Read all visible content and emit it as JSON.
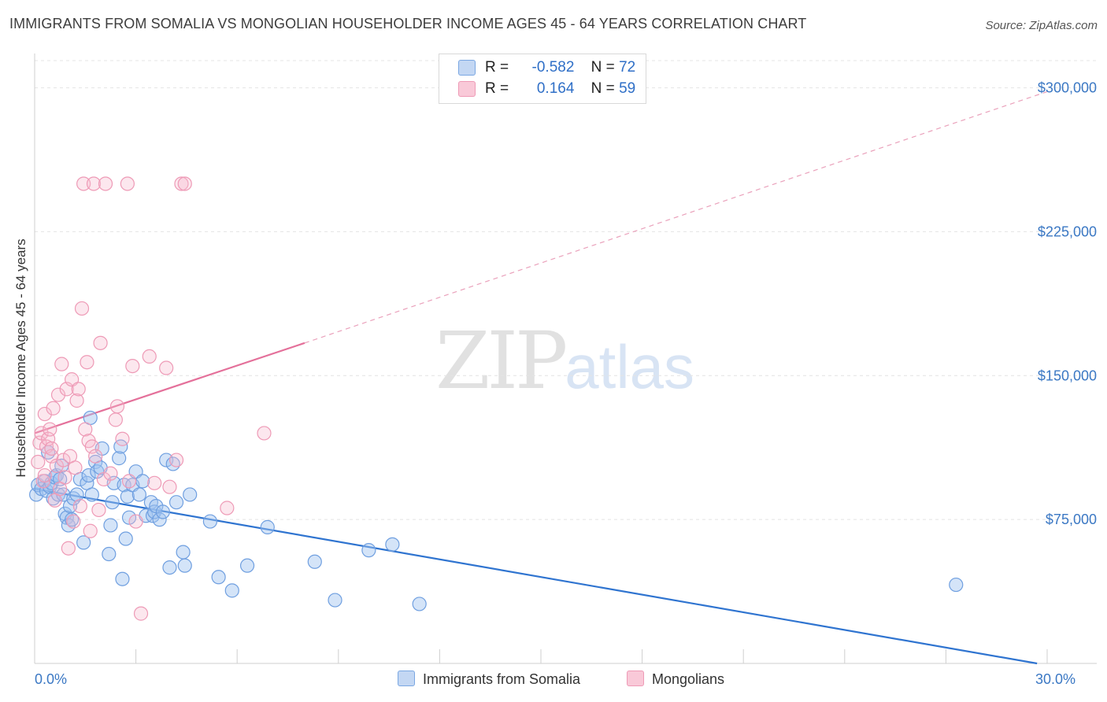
{
  "title": "IMMIGRANTS FROM SOMALIA VS MONGOLIAN HOUSEHOLDER INCOME AGES 45 - 64 YEARS CORRELATION CHART",
  "source": "Source: ZipAtlas.com",
  "watermark": {
    "zip": "ZIP",
    "atlas": "atlas"
  },
  "legend": {
    "rows": [
      {
        "r_label": "R =",
        "r_value": "-0.582",
        "n_label": "N =",
        "n_value": "72",
        "color": "#6f9fe0"
      },
      {
        "r_label": "R =",
        "r_value": "0.164",
        "n_label": "N =",
        "n_value": "59",
        "color": "#ee8fb0"
      }
    ]
  },
  "bottom_legend": [
    {
      "label": "Immigrants from Somalia",
      "color": "#6f9fe0"
    },
    {
      "label": "Mongolians",
      "color": "#ee8fb0"
    }
  ],
  "chart_data": {
    "type": "scatter",
    "title": "IMMIGRANTS FROM SOMALIA VS MONGOLIAN HOUSEHOLDER INCOME AGES 45 - 64 YEARS CORRELATION CHART",
    "xlabel": "",
    "ylabel": "Householder Income Ages 45 - 64 years",
    "xlim": [
      0,
      30
    ],
    "ylim": [
      0,
      315000
    ],
    "x_tick_labels": [
      {
        "value": 0,
        "label": "0.0%"
      },
      {
        "value": 30,
        "label": "30.0%"
      }
    ],
    "y_tick_labels": [
      {
        "value": 75000,
        "label": "$75,000"
      },
      {
        "value": 150000,
        "label": "$150,000"
      },
      {
        "value": 225000,
        "label": "$225,000"
      },
      {
        "value": 300000,
        "label": "$300,000"
      }
    ],
    "grid": true,
    "series": [
      {
        "name": "Immigrants from Somalia",
        "color": "#6f9fe0",
        "points": [
          [
            0.05,
            88000
          ],
          [
            0.1,
            93000
          ],
          [
            0.2,
            91000
          ],
          [
            0.3,
            95000
          ],
          [
            0.35,
            90000
          ],
          [
            0.4,
            110000
          ],
          [
            0.45,
            92000
          ],
          [
            0.5,
            94000
          ],
          [
            0.55,
            86000
          ],
          [
            0.6,
            97000
          ],
          [
            0.65,
            98000
          ],
          [
            0.7,
            88000
          ],
          [
            0.75,
            96000
          ],
          [
            0.8,
            103000
          ],
          [
            0.85,
            88000
          ],
          [
            0.9,
            78000
          ],
          [
            0.95,
            76000
          ],
          [
            1.0,
            72000
          ],
          [
            1.05,
            82000
          ],
          [
            1.1,
            75000
          ],
          [
            1.15,
            86000
          ],
          [
            1.25,
            88000
          ],
          [
            1.35,
            96000
          ],
          [
            1.45,
            63000
          ],
          [
            1.55,
            94000
          ],
          [
            1.6,
            98000
          ],
          [
            1.65,
            128000
          ],
          [
            1.7,
            88000
          ],
          [
            1.8,
            105000
          ],
          [
            1.85,
            100000
          ],
          [
            1.95,
            102000
          ],
          [
            2.0,
            112000
          ],
          [
            2.2,
            57000
          ],
          [
            2.25,
            72000
          ],
          [
            2.3,
            84000
          ],
          [
            2.35,
            94000
          ],
          [
            2.5,
            107000
          ],
          [
            2.55,
            113000
          ],
          [
            2.6,
            44000
          ],
          [
            2.65,
            93000
          ],
          [
            2.7,
            65000
          ],
          [
            2.75,
            87000
          ],
          [
            2.8,
            76000
          ],
          [
            2.9,
            93000
          ],
          [
            3.0,
            100000
          ],
          [
            3.1,
            88000
          ],
          [
            3.2,
            95000
          ],
          [
            3.3,
            77000
          ],
          [
            3.45,
            84000
          ],
          [
            3.5,
            77000
          ],
          [
            3.55,
            79000
          ],
          [
            3.6,
            82000
          ],
          [
            3.7,
            75000
          ],
          [
            3.8,
            79000
          ],
          [
            3.9,
            106000
          ],
          [
            4.0,
            50000
          ],
          [
            4.1,
            104000
          ],
          [
            4.2,
            84000
          ],
          [
            4.4,
            58000
          ],
          [
            4.45,
            51000
          ],
          [
            4.6,
            88000
          ],
          [
            5.2,
            74000
          ],
          [
            5.45,
            45000
          ],
          [
            5.85,
            38000
          ],
          [
            6.3,
            51000
          ],
          [
            6.9,
            71000
          ],
          [
            8.3,
            53000
          ],
          [
            8.9,
            33000
          ],
          [
            9.9,
            59000
          ],
          [
            10.6,
            62000
          ],
          [
            11.4,
            31000
          ],
          [
            27.3,
            41000
          ]
        ],
        "trendline": {
          "x": [
            0,
            29.7
          ],
          "y": [
            91000,
            0
          ]
        }
      },
      {
        "name": "Mongolians",
        "color": "#ee8fb0",
        "points": [
          [
            0.1,
            105000
          ],
          [
            0.15,
            115000
          ],
          [
            0.2,
            120000
          ],
          [
            0.25,
            95000
          ],
          [
            0.3,
            130000
          ],
          [
            0.35,
            113000
          ],
          [
            0.4,
            117000
          ],
          [
            0.45,
            122000
          ],
          [
            0.5,
            108000
          ],
          [
            0.55,
            133000
          ],
          [
            0.6,
            85000
          ],
          [
            0.65,
            103000
          ],
          [
            0.7,
            140000
          ],
          [
            0.75,
            91000
          ],
          [
            0.8,
            156000
          ],
          [
            0.85,
            106000
          ],
          [
            0.9,
            97000
          ],
          [
            0.95,
            143000
          ],
          [
            1.0,
            60000
          ],
          [
            1.05,
            108000
          ],
          [
            1.1,
            148000
          ],
          [
            1.15,
            74000
          ],
          [
            1.2,
            102000
          ],
          [
            1.25,
            137000
          ],
          [
            1.3,
            143000
          ],
          [
            1.35,
            82000
          ],
          [
            1.4,
            185000
          ],
          [
            1.45,
            250000
          ],
          [
            1.5,
            122000
          ],
          [
            1.55,
            157000
          ],
          [
            1.6,
            116000
          ],
          [
            1.65,
            69000
          ],
          [
            1.7,
            113000
          ],
          [
            1.75,
            250000
          ],
          [
            1.8,
            108000
          ],
          [
            1.9,
            80000
          ],
          [
            1.95,
            167000
          ],
          [
            2.05,
            96000
          ],
          [
            2.1,
            250000
          ],
          [
            2.25,
            99000
          ],
          [
            2.4,
            127000
          ],
          [
            2.45,
            134000
          ],
          [
            2.6,
            117000
          ],
          [
            2.75,
            250000
          ],
          [
            2.8,
            95000
          ],
          [
            2.9,
            155000
          ],
          [
            3.0,
            74000
          ],
          [
            3.15,
            26000
          ],
          [
            3.4,
            160000
          ],
          [
            3.55,
            94000
          ],
          [
            3.9,
            154000
          ],
          [
            4.0,
            92000
          ],
          [
            4.2,
            106000
          ],
          [
            4.35,
            250000
          ],
          [
            4.45,
            250000
          ],
          [
            5.7,
            81000
          ],
          [
            6.8,
            120000
          ],
          [
            0.5,
            112000
          ],
          [
            0.3,
            98000
          ]
        ],
        "trendline": {
          "x": [
            0,
            8.0
          ],
          "y": [
            120000,
            167000
          ]
        },
        "trendline_extension": {
          "x": [
            8.0,
            30.0
          ],
          "y": [
            167000,
            298000
          ]
        }
      }
    ]
  }
}
